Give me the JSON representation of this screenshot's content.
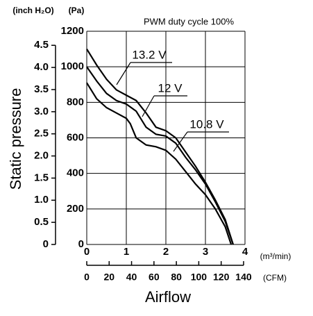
{
  "chart_data": {
    "type": "line",
    "title": "PWM duty cycle 100%",
    "y_label": "Static pressure",
    "x_label": "Airflow",
    "y_unit": "(Pa)",
    "y2_unit": "(inch H₂O)",
    "x_unit": "(m³/min)",
    "x2_unit": "(CFM)",
    "xlim": [
      0,
      4
    ],
    "xticks": [
      0,
      1,
      2,
      3,
      4
    ],
    "x2lim": [
      0,
      141.26
    ],
    "x2ticks": [
      0,
      20,
      40,
      60,
      80,
      100,
      120,
      140
    ],
    "ylim": [
      0,
      1200
    ],
    "yticks": [
      0,
      200,
      400,
      600,
      800,
      1000,
      1200
    ],
    "y2lim": [
      0,
      4.818
    ],
    "y2ticks": [
      0,
      0.5,
      {
        "value": 1,
        "label": "1.0"
      },
      1.5,
      {
        "value": 2,
        "label": "2.0"
      },
      2.5,
      {
        "value": 3,
        "label": "3.0"
      },
      3.5,
      {
        "value": 4,
        "label": "4.0"
      },
      4.5
    ],
    "grid": true,
    "series": [
      {
        "name": "13.2 V",
        "color": "#000000",
        "x": [
          0,
          0.25,
          0.5,
          0.75,
          1,
          1.25,
          1.5,
          1.75,
          2,
          2.25,
          2.5,
          2.75,
          3,
          3.25,
          3.5,
          3.7
        ],
        "values": [
          1100,
          1010,
          930,
          870,
          840,
          810,
          740,
          660,
          640,
          600,
          520,
          440,
          350,
          250,
          140,
          0
        ]
      },
      {
        "name": "12 V",
        "color": "#000000",
        "x": [
          0,
          0.25,
          0.5,
          0.75,
          1,
          1.25,
          1.5,
          1.75,
          2,
          2.25,
          2.5,
          2.75,
          3,
          3.25,
          3.5,
          3.7
        ],
        "values": [
          1000,
          920,
          850,
          810,
          790,
          750,
          660,
          620,
          610,
          570,
          490,
          420,
          340,
          240,
          130,
          0
        ]
      },
      {
        "name": "10.8 V",
        "color": "#000000",
        "x": [
          0,
          0.25,
          0.5,
          0.75,
          1,
          1.1,
          1.25,
          1.5,
          1.75,
          2,
          2.25,
          2.5,
          2.75,
          3,
          3.25,
          3.5,
          3.65
        ],
        "values": [
          910,
          820,
          770,
          740,
          710,
          680,
          600,
          560,
          550,
          530,
          480,
          410,
          340,
          280,
          200,
          100,
          0
        ]
      }
    ]
  }
}
